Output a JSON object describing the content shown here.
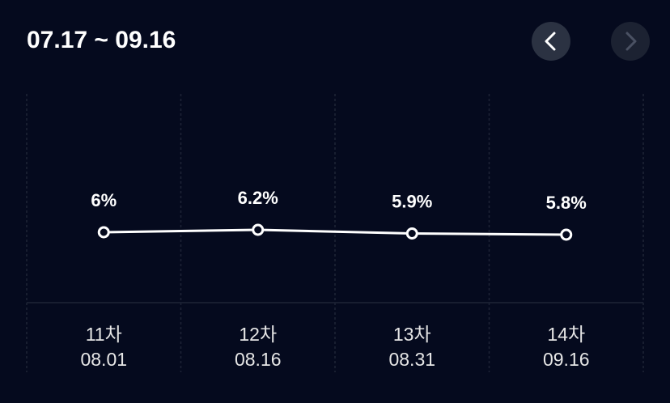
{
  "chart_data": {
    "type": "line",
    "title": "07.17 ~ 09.16",
    "categories": [
      "11차",
      "12차",
      "13차",
      "14차"
    ],
    "dates": [
      "08.01",
      "08.16",
      "08.31",
      "09.16"
    ],
    "values": [
      6,
      6.2,
      5.9,
      5.8
    ],
    "value_labels": [
      "6%",
      "6.2%",
      "5.9%",
      "5.8%"
    ],
    "color": "#ffffff",
    "ylim": [
      0.2,
      17.4
    ]
  }
}
